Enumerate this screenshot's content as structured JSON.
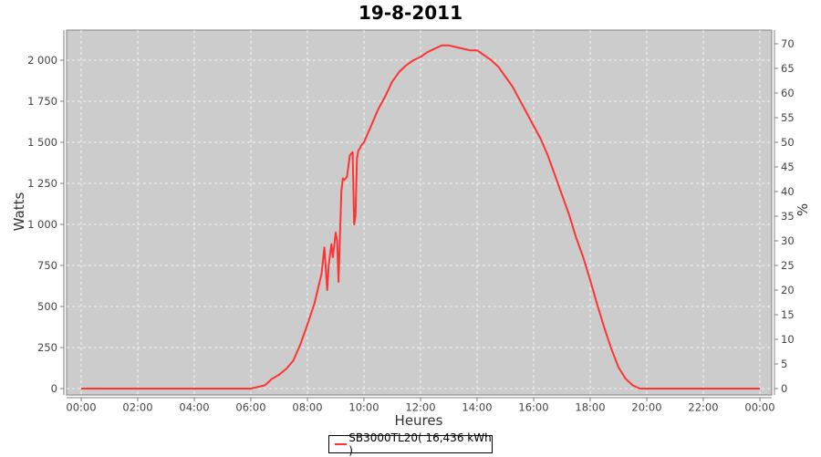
{
  "chart_data": {
    "type": "line",
    "title": "19-8-2011",
    "xlabel": "Heures",
    "ylabel": "Watts",
    "y2label": "%",
    "xlim": [
      0,
      24
    ],
    "ylim": [
      0,
      2200
    ],
    "y2lim": [
      0,
      73.33
    ],
    "grid": true,
    "legend_position": "bottom-center",
    "background": "#cccccc",
    "line_color": "#ff3333",
    "x_ticks": [
      "00:00",
      "02:00",
      "04:00",
      "06:00",
      "08:00",
      "10:00",
      "12:00",
      "14:00",
      "16:00",
      "18:00",
      "20:00",
      "22:00",
      "00:00"
    ],
    "y_ticks": [
      "0",
      "250",
      "500",
      "750",
      "1 000",
      "1 250",
      "1 500",
      "1 750",
      "2 000"
    ],
    "y2_ticks": [
      "0",
      "5",
      "10",
      "15",
      "20",
      "25",
      "30",
      "35",
      "40",
      "45",
      "50",
      "55",
      "60",
      "65",
      "70"
    ],
    "series": [
      {
        "name": "SB3000TL20( 16,436 kWh )",
        "x": [
          0,
          6.0,
          6.5,
          6.75,
          7.0,
          7.25,
          7.5,
          7.75,
          8.0,
          8.25,
          8.5,
          8.6,
          8.7,
          8.75,
          8.85,
          8.9,
          9.0,
          9.05,
          9.1,
          9.2,
          9.25,
          9.3,
          9.4,
          9.5,
          9.6,
          9.65,
          9.7,
          9.75,
          9.8,
          9.85,
          9.9,
          10.0,
          10.25,
          10.5,
          10.75,
          11.0,
          11.25,
          11.5,
          11.75,
          12.0,
          12.25,
          12.5,
          12.75,
          13.0,
          13.25,
          13.5,
          13.75,
          14.0,
          14.25,
          14.5,
          14.75,
          15.0,
          15.25,
          15.5,
          15.75,
          16.0,
          16.25,
          16.5,
          16.75,
          17.0,
          17.25,
          17.5,
          17.75,
          18.0,
          18.25,
          18.5,
          18.75,
          19.0,
          19.25,
          19.5,
          19.75,
          20.0,
          24.0
        ],
        "y": [
          0,
          0,
          20,
          60,
          85,
          120,
          170,
          270,
          390,
          520,
          700,
          860,
          600,
          750,
          880,
          800,
          950,
          900,
          650,
          1200,
          1280,
          1270,
          1290,
          1420,
          1440,
          1000,
          1050,
          1400,
          1450,
          1460,
          1480,
          1500,
          1600,
          1700,
          1780,
          1870,
          1930,
          1970,
          2000,
          2020,
          2050,
          2070,
          2090,
          2090,
          2080,
          2070,
          2060,
          2060,
          2030,
          2000,
          1960,
          1900,
          1840,
          1760,
          1680,
          1600,
          1520,
          1420,
          1300,
          1180,
          1060,
          920,
          800,
          660,
          510,
          370,
          240,
          130,
          60,
          20,
          0,
          0,
          0
        ]
      }
    ]
  }
}
